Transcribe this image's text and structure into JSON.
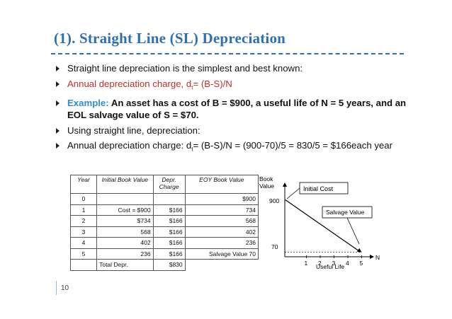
{
  "slide": {
    "title": "(1). Straight Line (SL) Depreciation",
    "page_number": "10"
  },
  "bullets": {
    "b1": "Straight line depreciation is the simplest and best known:",
    "b2_prefix": "Annual depreciation charge, d",
    "b2_sub": "t",
    "b2_suffix": "= (B-S)/N",
    "b3_label": "Example:",
    "b3_text": " An asset has a cost of B = $900, a useful life of N = 5 years, and an EOL salvage value of S = $70.",
    "b4": "Using straight line, depreciation:",
    "b5_prefix": "Annual depreciation charge: d",
    "b5_sub": "t",
    "b5_suffix": "= (B-S)/N = (900-70)/5 = 830/5 = $166each year"
  },
  "table": {
    "headers": [
      "Year",
      "Initial Book Value",
      "Depr. Charge",
      "EOY Book Value"
    ],
    "rows": [
      {
        "year": "0",
        "ibv": "",
        "dep": "",
        "eoy": "$900"
      },
      {
        "year": "1",
        "ibv": "Cost = $900",
        "dep": "$166",
        "eoy": "734"
      },
      {
        "year": "2",
        "ibv": "$734",
        "dep": "$166",
        "eoy": "568"
      },
      {
        "year": "3",
        "ibv": "568",
        "dep": "$166",
        "eoy": "402"
      },
      {
        "year": "4",
        "ibv": "402",
        "dep": "$166",
        "eoy": "236"
      },
      {
        "year": "5",
        "ibv": "236",
        "dep": "$166",
        "eoy": "Salvage Value  70"
      }
    ],
    "total_label": "Total Depr.",
    "total_value": "$830"
  },
  "graph": {
    "y_label_line1": "Book",
    "y_label_line2": "Value",
    "x_label": "Useful Life",
    "y_tick_900": "900",
    "y_tick_70": "70",
    "x_ticks": [
      "1",
      "2",
      "3",
      "4",
      "5"
    ],
    "x_axis_end": "N",
    "callout_initial": "Initial Cost",
    "callout_salvage": "Salvage Value",
    "line_start_value": 900,
    "line_end_value": 70,
    "life_years": 5
  }
}
